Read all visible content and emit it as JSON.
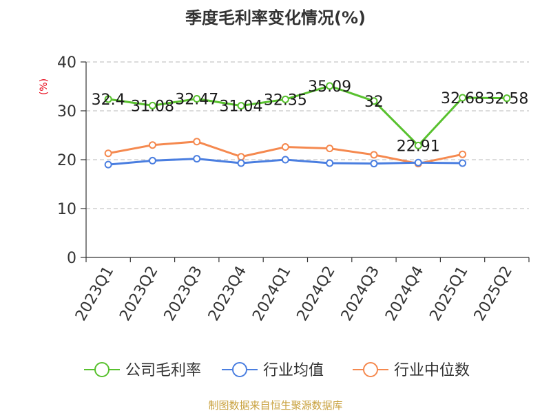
{
  "chart_data": {
    "type": "line",
    "title": "季度毛利率变化情况(%)",
    "ylabel": "(%)",
    "xlabel": "",
    "ylim": [
      0,
      40
    ],
    "yticks": [
      0,
      10,
      20,
      30,
      40
    ],
    "grid": true,
    "legend_position": "bottom",
    "categories": [
      "2023Q1",
      "2023Q2",
      "2023Q3",
      "2023Q4",
      "2024Q1",
      "2024Q2",
      "2024Q3",
      "2024Q4",
      "2025Q1",
      "2025Q2"
    ],
    "series": [
      {
        "name": "公司毛利率",
        "color": "#58c12e",
        "values": [
          32.4,
          31.08,
          32.47,
          31.04,
          32.35,
          35.09,
          32,
          22.91,
          32.68,
          32.58
        ],
        "labels": [
          "32.4",
          "31.08",
          "32.47",
          "31.04",
          "32.35",
          "35.09",
          "32",
          "22.91",
          "32.68",
          "32.58"
        ]
      },
      {
        "name": "行业均值",
        "color": "#4a7ee0",
        "values": [
          19.0,
          19.8,
          20.2,
          19.3,
          20.0,
          19.3,
          19.2,
          19.4,
          19.3,
          null
        ]
      },
      {
        "name": "行业中位数",
        "color": "#f5894f",
        "values": [
          21.3,
          23.0,
          23.7,
          20.6,
          22.6,
          22.3,
          21.0,
          19.2,
          21.1,
          null
        ]
      }
    ]
  },
  "source": "制图数据来自恒生聚源数据库"
}
